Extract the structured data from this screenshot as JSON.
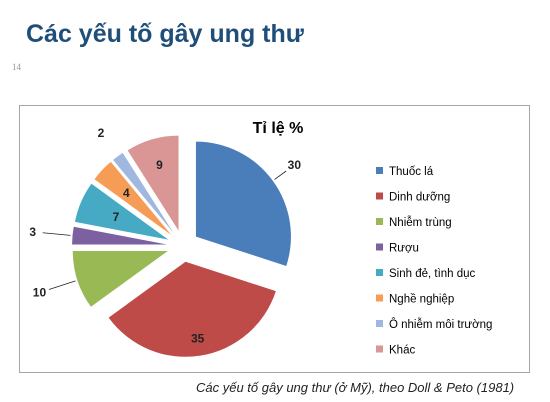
{
  "slide": {
    "title": "Các yếu tố gây ung thư",
    "number": "14",
    "caption": "Các yếu tố gây ung thư (ở Mỹ), theo Doll & Peto (1981)"
  },
  "chart_data": {
    "type": "pie",
    "title": "Tỉ lệ %",
    "exploded": true,
    "legend_position": "right",
    "categories": [
      "Thuốc lá",
      "Dinh dưỡng",
      "Nhiễm trùng",
      "Rượu",
      "Sinh đẻ, tình dục",
      "Nghề nghiệp",
      "Ô nhiễm môi trường",
      "Khác"
    ],
    "values": [
      30,
      35,
      10,
      3,
      7,
      4,
      2,
      9
    ],
    "data_labels": [
      "30",
      "35",
      "10",
      "3",
      "7",
      "4",
      "2",
      "9"
    ],
    "colors": [
      "#4a7ebb",
      "#be4b48",
      "#98b954",
      "#7d60a0",
      "#46aac5",
      "#f59d56",
      "#a0b8e0",
      "#d99694"
    ]
  }
}
